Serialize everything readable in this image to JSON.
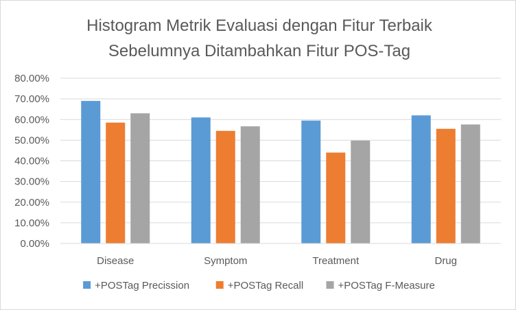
{
  "chart_data": {
    "type": "bar",
    "title_lines": [
      "Histogram Metrik Evaluasi dengan Fitur Terbaik",
      "Sebelumnya Ditambahkan Fitur POS-Tag"
    ],
    "categories": [
      "Disease",
      "Symptom",
      "Treatment",
      "Drug"
    ],
    "series": [
      {
        "name": "+POSTag Precission",
        "color": "#5b9bd5",
        "values": [
          0.69,
          0.61,
          0.595,
          0.62
        ]
      },
      {
        "name": "+POSTag Recall",
        "color": "#ed7d31",
        "values": [
          0.585,
          0.545,
          0.44,
          0.555
        ]
      },
      {
        "name": "+POSTag F-Measure",
        "color": "#a5a5a5",
        "values": [
          0.63,
          0.567,
          0.498,
          0.576
        ]
      }
    ],
    "ylim": [
      0,
      0.8
    ],
    "yticks": [
      "0.00%",
      "10.00%",
      "20.00%",
      "30.00%",
      "40.00%",
      "50.00%",
      "60.00%",
      "70.00%",
      "80.00%"
    ],
    "grid": true,
    "legend_position": "bottom"
  }
}
